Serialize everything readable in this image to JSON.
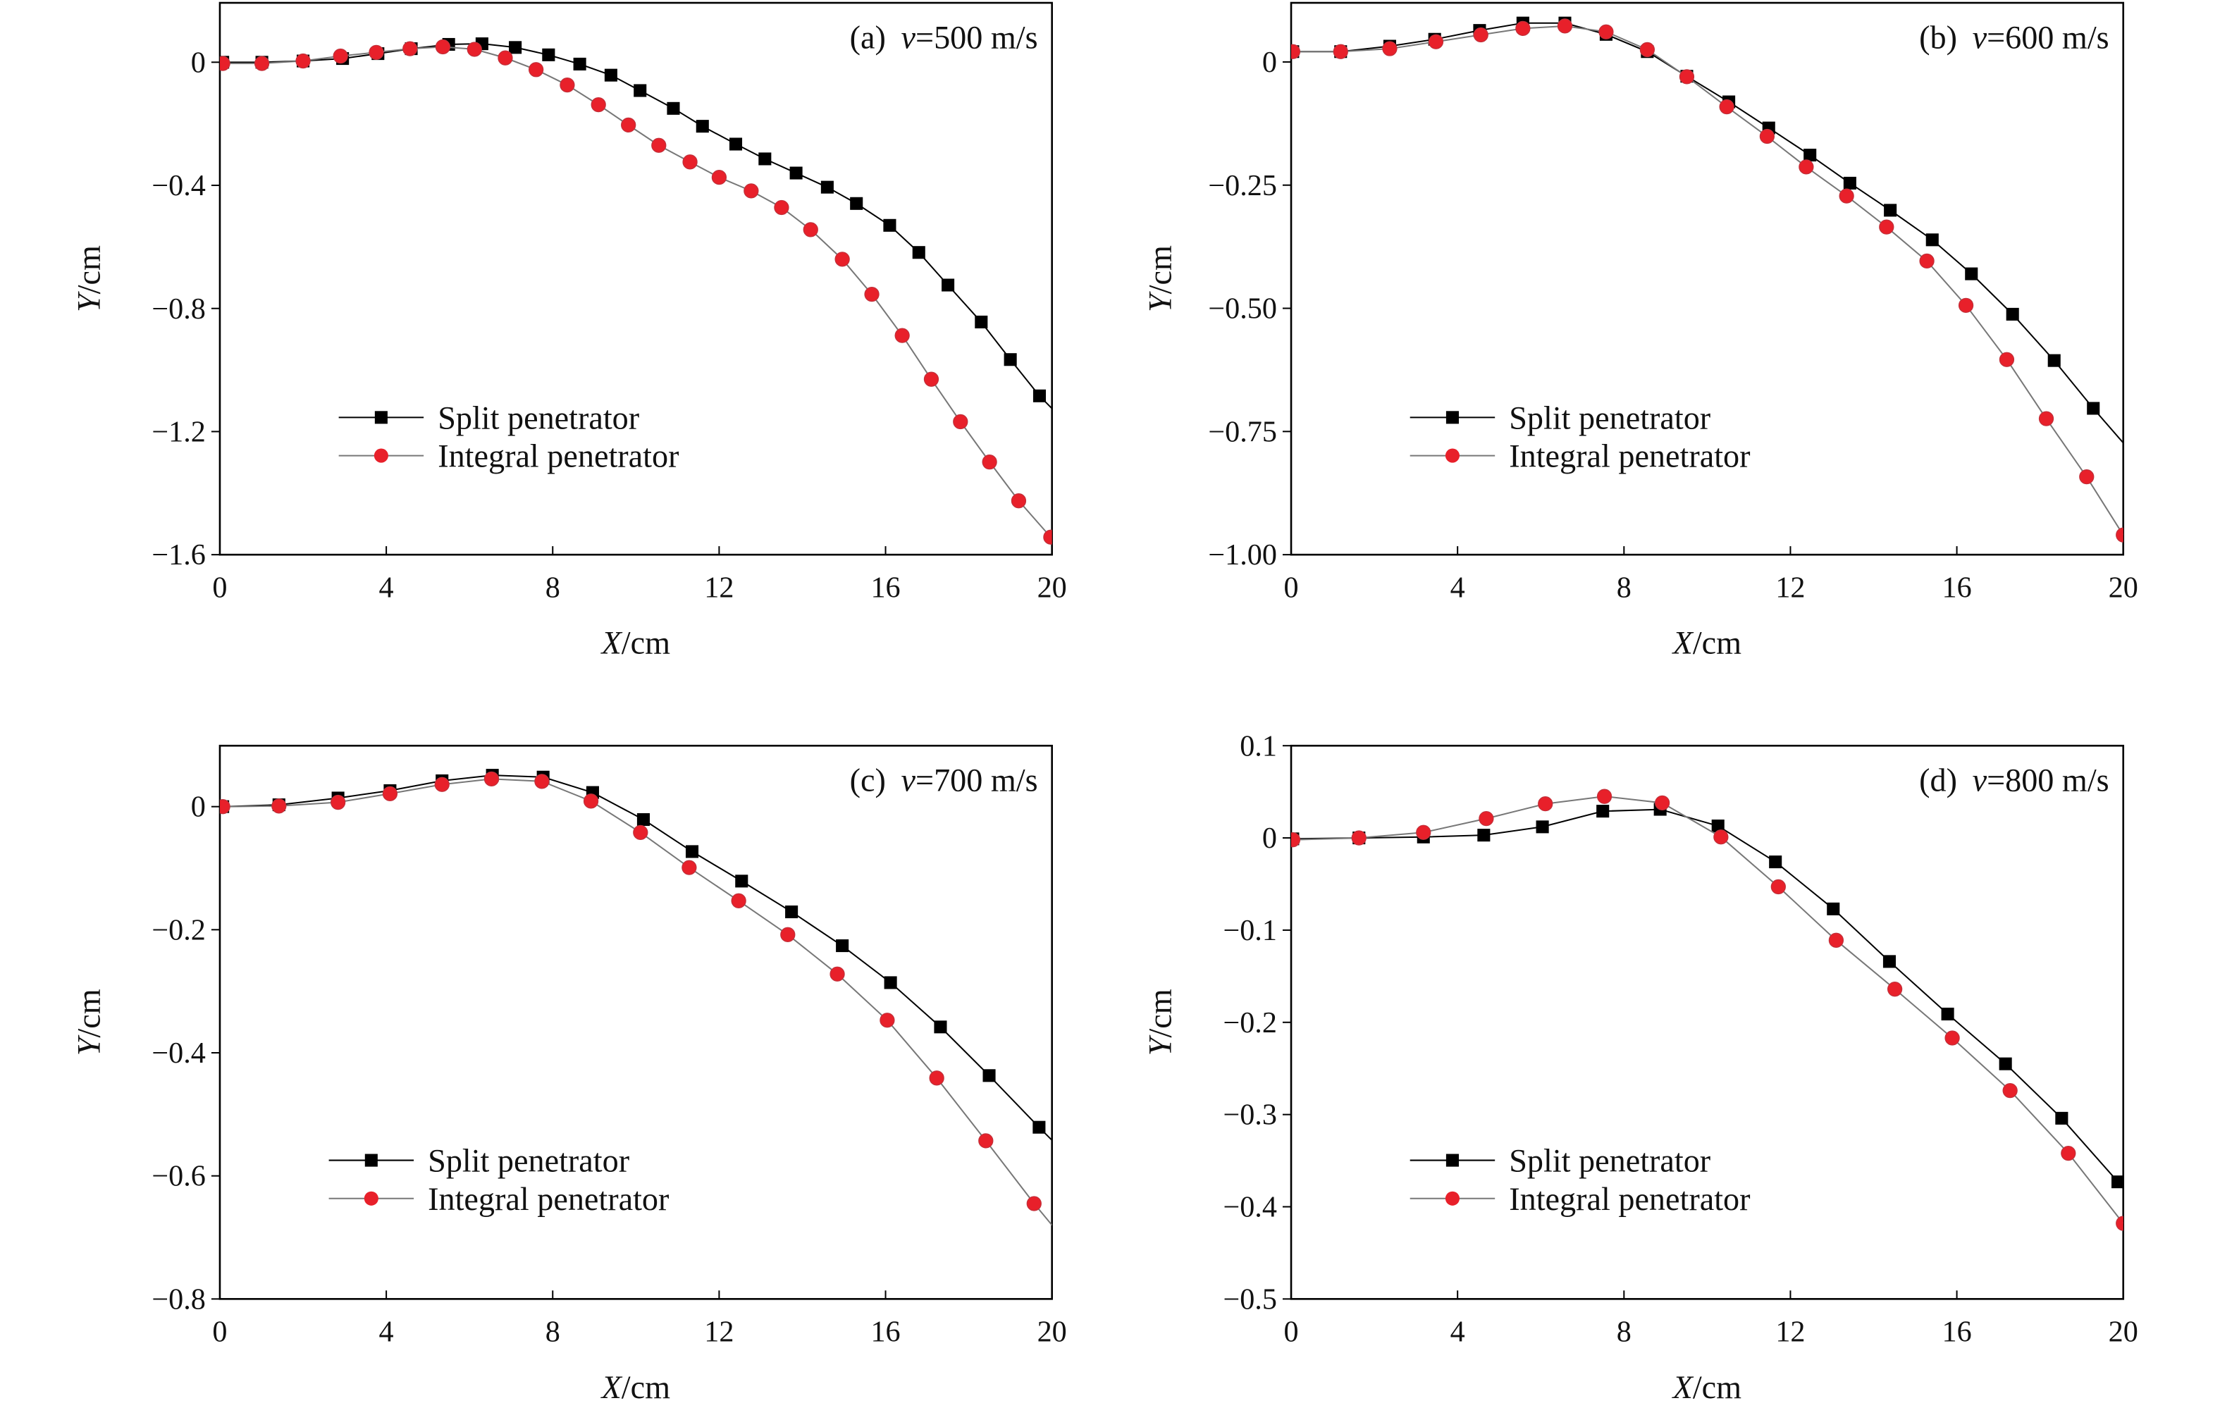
{
  "chart_data": [
    {
      "type": "line",
      "panel": "a",
      "title_label": "(a)",
      "title_var": "v",
      "title_value": "=500 m/s",
      "xlabel_var": "X",
      "xlabel_unit": "/cm",
      "ylabel_var": "Y",
      "ylabel_unit": "/cm",
      "xlim": [
        0,
        20
      ],
      "ylim": [
        -1.6,
        0.193
      ],
      "xticks": [
        0,
        4,
        8,
        12,
        16,
        20
      ],
      "xtick_labels": [
        "0",
        "4",
        "8",
        "12",
        "16",
        "20"
      ],
      "yticks": [
        0,
        -0.4,
        -0.8,
        -1.2,
        -1.6
      ],
      "ytick_labels": [
        "0",
        "−0.4",
        "−0.8",
        "−1.2",
        "−1.6"
      ],
      "legend_placement": "lower-left",
      "grid": false,
      "series": [
        {
          "name": "Split penetrator",
          "marker": "square",
          "color": "#000000",
          "line_color": "#000000",
          "x": [
            0.07,
            1.01,
            2.0,
            2.95,
            3.8,
            4.6,
            5.5,
            6.3,
            7.1,
            7.9,
            8.65,
            9.4,
            10.1,
            10.9,
            11.6,
            12.4,
            13.1,
            13.85,
            14.6,
            15.3,
            16.1,
            16.8,
            17.5,
            18.3,
            19.0,
            19.7,
            20.0
          ],
          "y": [
            0,
            0,
            0.004,
            0.012,
            0.028,
            0.044,
            0.058,
            0.06,
            0.048,
            0.024,
            -0.006,
            -0.042,
            -0.092,
            -0.15,
            -0.208,
            -0.266,
            -0.314,
            -0.36,
            -0.406,
            -0.459,
            -0.53,
            -0.618,
            -0.724,
            -0.844,
            -0.966,
            -1.084,
            -1.125
          ],
          "markers_until": 26
        },
        {
          "name": "Integral penetrator",
          "marker": "circle",
          "color": "#e8202a",
          "line_color": "#777777",
          "x": [
            0.07,
            1.01,
            2.0,
            2.9,
            3.76,
            4.57,
            5.36,
            6.12,
            6.86,
            7.6,
            8.35,
            9.1,
            9.82,
            10.55,
            11.3,
            12.0,
            12.77,
            13.5,
            14.2,
            14.96,
            15.67,
            16.4,
            17.1,
            17.8,
            18.5,
            19.2,
            19.97
          ],
          "y": [
            -0.004,
            -0.004,
            0.004,
            0.02,
            0.032,
            0.044,
            0.05,
            0.042,
            0.014,
            -0.024,
            -0.074,
            -0.138,
            -0.204,
            -0.27,
            -0.324,
            -0.374,
            -0.418,
            -0.472,
            -0.544,
            -0.64,
            -0.754,
            -0.888,
            -1.03,
            -1.168,
            -1.299,
            -1.425,
            -1.543
          ],
          "markers_until": 27
        }
      ]
    },
    {
      "type": "line",
      "panel": "b",
      "title_label": "(b)",
      "title_var": "v",
      "title_value": "=600 m/s",
      "xlabel_var": "X",
      "xlabel_unit": "/cm",
      "ylabel_var": "Y",
      "ylabel_unit": "/cm",
      "xlim": [
        0,
        20
      ],
      "ylim": [
        -1.0,
        0.12
      ],
      "xticks": [
        0,
        4,
        8,
        12,
        16,
        20
      ],
      "xtick_labels": [
        "0",
        "4",
        "8",
        "12",
        "16",
        "20"
      ],
      "yticks": [
        0,
        -0.25,
        -0.5,
        -0.75,
        -1.0
      ],
      "ytick_labels": [
        "0",
        "−0.25",
        "−0.50",
        "−0.75",
        "−1.00"
      ],
      "legend_placement": "lower-left",
      "grid": false,
      "series": [
        {
          "name": "Split penetrator",
          "marker": "square",
          "color": "#000000",
          "line_color": "#000000",
          "x": [
            0.04,
            1.19,
            2.37,
            3.45,
            4.53,
            5.57,
            6.58,
            7.57,
            8.56,
            9.51,
            10.52,
            11.48,
            12.47,
            13.43,
            14.4,
            15.41,
            16.35,
            17.34,
            18.34,
            19.28,
            20.0
          ],
          "y": [
            0.021,
            0.021,
            0.032,
            0.046,
            0.064,
            0.079,
            0.079,
            0.056,
            0.021,
            -0.029,
            -0.081,
            -0.134,
            -0.189,
            -0.246,
            -0.301,
            -0.361,
            -0.43,
            -0.512,
            -0.606,
            -0.703,
            -0.773
          ],
          "markers_until": 20
        },
        {
          "name": "Integral penetrator",
          "marker": "circle",
          "color": "#e8202a",
          "line_color": "#777777",
          "x": [
            0.04,
            1.19,
            2.37,
            3.48,
            4.56,
            5.57,
            6.58,
            7.57,
            8.56,
            9.51,
            10.47,
            11.44,
            12.38,
            13.35,
            14.31,
            15.28,
            16.22,
            17.2,
            18.15,
            19.12,
            20.0
          ],
          "y": [
            0.021,
            0.021,
            0.027,
            0.041,
            0.055,
            0.068,
            0.073,
            0.061,
            0.025,
            -0.03,
            -0.091,
            -0.151,
            -0.213,
            -0.272,
            -0.335,
            -0.404,
            -0.494,
            -0.604,
            -0.724,
            -0.842,
            -0.96
          ],
          "markers_until": 21
        }
      ]
    },
    {
      "type": "line",
      "panel": "c",
      "title_label": "(c)",
      "title_var": "v",
      "title_value": "=700 m/s",
      "xlabel_var": "X",
      "xlabel_unit": "/cm",
      "ylabel_var": "Y",
      "ylabel_unit": "/cm",
      "xlim": [
        0,
        20
      ],
      "ylim": [
        -0.8,
        0.099
      ],
      "xticks": [
        0,
        4,
        8,
        12,
        16,
        20
      ],
      "xtick_labels": [
        "0",
        "4",
        "8",
        "12",
        "16",
        "20"
      ],
      "yticks": [
        0,
        -0.2,
        -0.4,
        -0.6,
        -0.8
      ],
      "ytick_labels": [
        "0",
        "−0.2",
        "−0.4",
        "−0.6",
        "−0.8"
      ],
      "legend_placement": "lower-left",
      "grid": false,
      "series": [
        {
          "name": "Split penetrator",
          "marker": "square",
          "color": "#000000",
          "line_color": "#000000",
          "x": [
            0.07,
            1.42,
            2.84,
            4.09,
            5.34,
            6.55,
            7.77,
            8.96,
            10.18,
            11.35,
            12.54,
            13.74,
            14.96,
            16.12,
            17.32,
            18.49,
            19.69,
            20.0
          ],
          "y": [
            0,
            0.003,
            0.014,
            0.026,
            0.042,
            0.051,
            0.048,
            0.023,
            -0.021,
            -0.073,
            -0.121,
            -0.171,
            -0.226,
            -0.286,
            -0.358,
            -0.437,
            -0.521,
            -0.542
          ],
          "markers_until": 17
        },
        {
          "name": "Integral penetrator",
          "marker": "circle",
          "color": "#e8202a",
          "line_color": "#777777",
          "x": [
            0.07,
            1.42,
            2.84,
            4.09,
            5.34,
            6.53,
            7.74,
            8.92,
            10.11,
            11.28,
            12.47,
            13.65,
            14.84,
            16.04,
            17.23,
            18.41,
            19.57,
            20.0
          ],
          "y": [
            0,
            0.001,
            0.007,
            0.021,
            0.036,
            0.045,
            0.041,
            0.009,
            -0.042,
            -0.099,
            -0.153,
            -0.208,
            -0.272,
            -0.347,
            -0.441,
            -0.543,
            -0.645,
            -0.68
          ],
          "markers_until": 17
        }
      ]
    },
    {
      "type": "line",
      "panel": "d",
      "title_label": "(d)",
      "title_var": "v",
      "title_value": "=800 m/s",
      "xlabel_var": "X",
      "xlabel_unit": "/cm",
      "ylabel_var": "Y",
      "ylabel_unit": "/cm",
      "xlim": [
        0,
        20
      ],
      "ylim": [
        -0.5,
        0.1
      ],
      "xticks": [
        0,
        4,
        8,
        12,
        16,
        20
      ],
      "xtick_labels": [
        "0",
        "4",
        "8",
        "12",
        "16",
        "20"
      ],
      "yticks": [
        0.1,
        0,
        -0.1,
        -0.2,
        -0.3,
        -0.4,
        -0.5
      ],
      "ytick_labels": [
        "0.1",
        "0",
        "−0.1",
        "−0.2",
        "−0.3",
        "−0.4",
        "−0.5"
      ],
      "legend_placement": "lower-left",
      "grid": false,
      "series": [
        {
          "name": "Split penetrator",
          "marker": "square",
          "color": "#000000",
          "line_color": "#000000",
          "x": [
            0.04,
            1.63,
            3.18,
            4.63,
            6.04,
            7.49,
            8.87,
            10.26,
            11.64,
            13.03,
            14.38,
            15.78,
            17.17,
            18.52,
            19.87,
            20.0
          ],
          "y": [
            -0.001,
            0.0,
            0.001,
            0.003,
            0.012,
            0.029,
            0.031,
            0.013,
            -0.026,
            -0.077,
            -0.134,
            -0.191,
            -0.245,
            -0.304,
            -0.373,
            -0.38
          ],
          "markers_until": 15
        },
        {
          "name": "Integral penetrator",
          "marker": "circle",
          "color": "#e8202a",
          "line_color": "#777777",
          "x": [
            0.04,
            1.63,
            3.18,
            4.69,
            6.11,
            7.53,
            8.92,
            10.33,
            11.71,
            13.1,
            14.51,
            15.89,
            17.28,
            18.68,
            20.0
          ],
          "y": [
            -0.002,
            0.0,
            0.006,
            0.021,
            0.037,
            0.045,
            0.038,
            0.001,
            -0.053,
            -0.111,
            -0.164,
            -0.217,
            -0.274,
            -0.342,
            -0.418
          ],
          "markers_until": 15
        }
      ]
    }
  ]
}
